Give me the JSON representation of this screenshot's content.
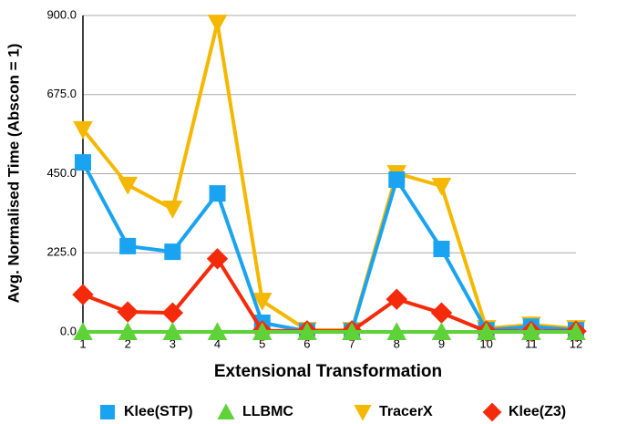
{
  "chart_data": {
    "type": "line",
    "x_label": "Extensional Transformation",
    "y_label": "Avg. Normalised Time (Abscon = 1)",
    "x": [
      1,
      2,
      3,
      4,
      5,
      6,
      7,
      8,
      9,
      10,
      11,
      12
    ],
    "xlim": [
      1,
      12
    ],
    "xticks": [
      1,
      2,
      3,
      4,
      5,
      6,
      7,
      8,
      9,
      10,
      11,
      12
    ],
    "ylim": [
      0,
      900
    ],
    "yticks": [
      {
        "value": 0,
        "label": "0.0"
      },
      {
        "value": 225,
        "label": "225.0"
      },
      {
        "value": 450,
        "label": "450.0"
      },
      {
        "value": 675,
        "label": "675.0"
      },
      {
        "value": 900,
        "label": "900.0"
      }
    ],
    "grid": true,
    "legend": "bottom",
    "series": [
      {
        "name": "Klee(STP)",
        "color": "#1aa3f0",
        "marker": "square",
        "values": [
          482,
          244,
          228,
          394,
          26,
          2,
          2,
          433,
          236,
          5,
          15,
          5
        ]
      },
      {
        "name": "LLBMC",
        "color": "#5fd23a",
        "marker": "triangle-up",
        "values": [
          0,
          0,
          0,
          0,
          0,
          0,
          0,
          0,
          0,
          0,
          0,
          0
        ]
      },
      {
        "name": "TracerX",
        "color": "#f5b800",
        "marker": "triangle-down",
        "values": [
          576,
          418,
          350,
          879,
          88,
          5,
          5,
          451,
          415,
          10,
          20,
          10
        ]
      },
      {
        "name": "Klee(Z3)",
        "color": "#f52a0a",
        "marker": "diamond",
        "values": [
          106,
          57,
          54,
          208,
          3,
          3,
          3,
          93,
          54,
          2,
          2,
          2
        ]
      }
    ]
  }
}
